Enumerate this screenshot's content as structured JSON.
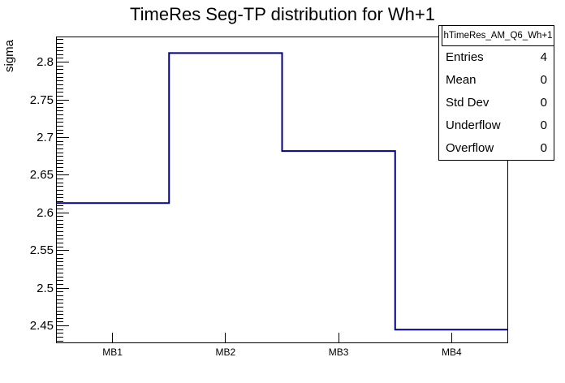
{
  "page_title": "TimeRes Seg-TP distribution for Wh+1",
  "stats_box": {
    "title": "hTimeRes_AM_Q6_Wh+1",
    "rows": [
      {
        "label": "Entries",
        "value": "4"
      },
      {
        "label": "Mean",
        "value": "0"
      },
      {
        "label": "Std Dev",
        "value": "0"
      },
      {
        "label": "Underflow",
        "value": "0"
      },
      {
        "label": "Overflow",
        "value": "0"
      }
    ]
  },
  "chart_data": {
    "type": "bar",
    "subtype": "step-histogram",
    "title": "TimeRes Seg-TP distribution for Wh+1",
    "categories": [
      "MB1",
      "MB2",
      "MB3",
      "MB4"
    ],
    "values": [
      2.613,
      2.812,
      2.682,
      2.445
    ],
    "xlabel": "",
    "ylabel": "sigma",
    "ylim": [
      2.427,
      2.834
    ],
    "y_major_ticks": [
      2.45,
      2.5,
      2.55,
      2.6,
      2.65,
      2.7,
      2.75,
      2.8
    ],
    "y_tick_labels": [
      "2.45",
      "2.5",
      "2.55",
      "2.6",
      "2.65",
      "2.7",
      "2.75",
      "2.8"
    ],
    "y_minor_step": 0.005,
    "grid": false,
    "legend": "none",
    "line_color": "#000080",
    "frame_color": "#000000",
    "background": "#ffffff"
  }
}
